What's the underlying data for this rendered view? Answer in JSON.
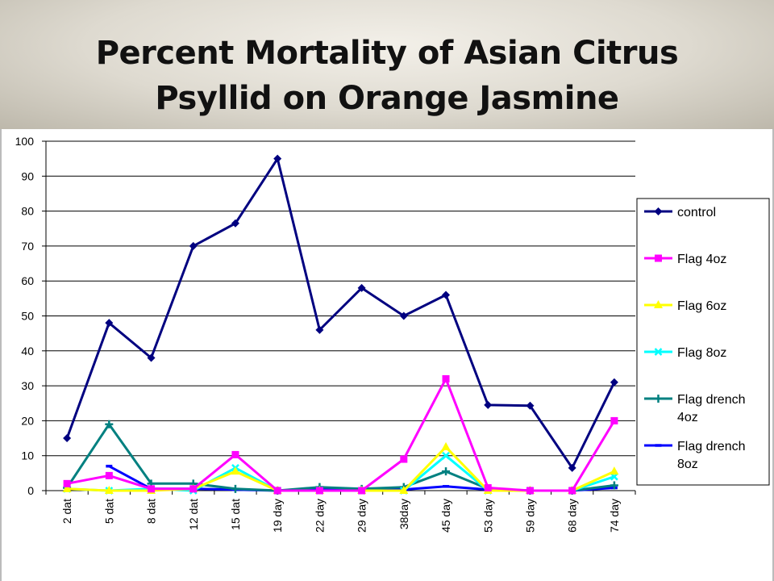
{
  "title": {
    "line1": "Percent Mortality of Asian Citrus",
    "line2": "Psyllid on Orange Jasmine"
  },
  "chart_data": {
    "type": "line",
    "categories": [
      "2 dat",
      "5 dat",
      "8 dat",
      "12 dat",
      "15 dat",
      "19 day",
      "22 day",
      "29 day",
      "38day",
      "45 day",
      "53 day",
      "59 day",
      "68 day",
      "74 day"
    ],
    "ylim": [
      0,
      100
    ],
    "yticks": [
      0,
      10,
      20,
      30,
      40,
      50,
      60,
      70,
      80,
      90,
      100
    ],
    "grid": true,
    "legend_position": "right",
    "series": [
      {
        "name": "control",
        "color": "#000080",
        "marker": "diamond",
        "values": [
          15,
          48,
          38,
          70,
          76.5,
          95,
          46,
          58,
          50,
          56,
          24.5,
          24.3,
          6.5,
          31
        ]
      },
      {
        "name": "Flag 4oz",
        "color": "#ff00ff",
        "marker": "square",
        "values": [
          2,
          4.3,
          0.5,
          0.5,
          10.3,
          0,
          0,
          0,
          9,
          32,
          0.8,
          0,
          0,
          20
        ]
      },
      {
        "name": "Flag 6oz",
        "color": "#ffff00",
        "marker": "triangle",
        "values": [
          0.5,
          0,
          0,
          0.5,
          5.5,
          0,
          0,
          0,
          0,
          12.5,
          0,
          0,
          0,
          5.5
        ]
      },
      {
        "name": "Flag 8oz",
        "color": "#00ffff",
        "marker": "x",
        "values": [
          0.5,
          0,
          0.5,
          0,
          6.5,
          0,
          0,
          0,
          0,
          10,
          0,
          0,
          0,
          4
        ]
      },
      {
        "name": "Flag drench 4oz",
        "color": "#008080",
        "marker": "plus",
        "values": [
          0.8,
          19,
          2,
          2,
          0.5,
          0,
          1,
          0.5,
          1,
          5.5,
          0.5,
          0,
          0,
          1.5
        ]
      },
      {
        "name": "Flag drench 8oz",
        "color": "#0000ff",
        "marker": "dash",
        "values": [
          null,
          7,
          0.5,
          0.5,
          0.3,
          0,
          0.3,
          0.3,
          0.3,
          1.2,
          0.3,
          0,
          0,
          0.8
        ]
      }
    ]
  }
}
